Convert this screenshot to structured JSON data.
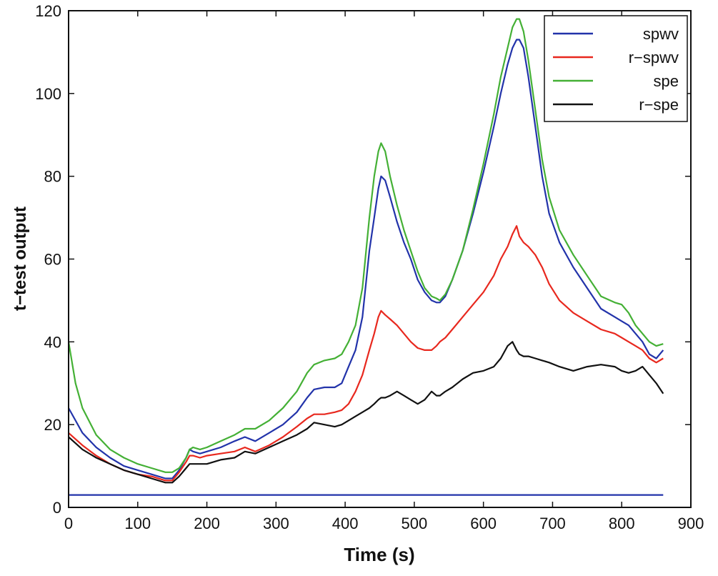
{
  "chart_data": {
    "type": "line",
    "title": "",
    "xlabel": "Time (s)",
    "ylabel": "t−test output",
    "xlim": [
      0,
      900
    ],
    "ylim": [
      0,
      120
    ],
    "xticks": [
      "0",
      "100",
      "200",
      "300",
      "400",
      "500",
      "600",
      "700",
      "800",
      "900"
    ],
    "yticks": [
      "0",
      "20",
      "40",
      "60",
      "80",
      "100",
      "120"
    ],
    "grid": false,
    "legend_position": "top-right",
    "series": [
      {
        "name": "spwv",
        "color": "#2233aa",
        "x": [
          0,
          10,
          20,
          40,
          60,
          80,
          100,
          120,
          140,
          150,
          160,
          170,
          175,
          180,
          190,
          200,
          220,
          240,
          255,
          270,
          290,
          310,
          330,
          345,
          355,
          370,
          385,
          395,
          405,
          415,
          425,
          435,
          442,
          448,
          452,
          458,
          465,
          475,
          485,
          495,
          505,
          515,
          525,
          532,
          537,
          545,
          555,
          570,
          585,
          600,
          615,
          625,
          635,
          642,
          648,
          652,
          658,
          665,
          675,
          685,
          695,
          710,
          730,
          750,
          770,
          790,
          800,
          810,
          820,
          830,
          840,
          850,
          860
        ],
        "y": [
          24,
          21,
          18,
          14.5,
          12,
          10,
          9,
          8,
          7,
          7,
          9,
          12,
          14,
          13.5,
          13,
          13.5,
          14.5,
          16,
          17,
          16,
          18,
          20,
          23,
          26.5,
          28.5,
          29,
          29,
          30,
          34,
          38,
          46,
          62,
          70,
          77,
          80,
          79,
          75,
          69,
          64,
          60,
          55,
          52,
          50,
          49.5,
          49.5,
          51,
          55,
          62,
          71,
          81,
          92,
          100,
          107,
          111,
          113,
          113,
          111,
          104,
          92,
          80,
          71,
          64,
          58,
          53,
          48,
          46,
          45,
          44,
          42,
          40,
          37,
          36,
          38
        ]
      },
      {
        "name": "r−spwv",
        "color": "#e8281e",
        "x": [
          0,
          10,
          20,
          40,
          60,
          80,
          100,
          120,
          140,
          150,
          160,
          170,
          175,
          180,
          190,
          200,
          220,
          240,
          255,
          270,
          290,
          310,
          330,
          345,
          355,
          370,
          385,
          395,
          405,
          415,
          425,
          435,
          442,
          448,
          452,
          458,
          465,
          475,
          485,
          495,
          505,
          515,
          525,
          532,
          537,
          545,
          555,
          570,
          585,
          600,
          615,
          625,
          635,
          642,
          648,
          652,
          658,
          665,
          675,
          685,
          695,
          710,
          730,
          750,
          770,
          790,
          800,
          810,
          820,
          830,
          840,
          850,
          860
        ],
        "y": [
          18,
          16.5,
          15,
          12.5,
          10.5,
          9,
          8,
          7.5,
          6.5,
          6.5,
          8.5,
          11,
          12.5,
          12.5,
          12,
          12.5,
          13,
          13.5,
          14.5,
          13.5,
          15,
          17,
          19.5,
          21.5,
          22.5,
          22.5,
          23,
          23.5,
          25,
          28,
          32,
          38,
          42,
          46,
          47.5,
          46.5,
          45.5,
          44,
          42,
          40,
          38.5,
          38,
          38,
          39,
          40,
          41,
          43,
          46,
          49,
          52,
          56,
          60,
          63,
          66,
          68,
          65.5,
          64,
          63,
          61,
          58,
          54,
          50,
          47,
          45,
          43,
          42,
          41,
          40,
          39,
          38,
          36,
          35,
          36
        ]
      },
      {
        "name": "spe",
        "color": "#44b035",
        "x": [
          0,
          10,
          20,
          40,
          60,
          80,
          100,
          120,
          140,
          150,
          160,
          170,
          175,
          180,
          190,
          200,
          220,
          240,
          255,
          270,
          290,
          310,
          330,
          345,
          355,
          370,
          385,
          395,
          405,
          415,
          425,
          435,
          442,
          448,
          452,
          458,
          465,
          475,
          485,
          495,
          505,
          515,
          525,
          532,
          537,
          545,
          555,
          570,
          585,
          600,
          615,
          625,
          635,
          642,
          648,
          652,
          658,
          665,
          675,
          685,
          695,
          710,
          730,
          750,
          770,
          790,
          800,
          810,
          820,
          830,
          840,
          850,
          860
        ],
        "y": [
          40,
          30,
          24,
          17.5,
          14,
          12,
          10.5,
          9.5,
          8.5,
          8.5,
          9.5,
          12,
          14,
          14.5,
          14,
          14.5,
          16,
          17.5,
          19,
          19,
          21,
          24,
          28,
          32.5,
          34.5,
          35.5,
          36,
          37,
          40,
          44,
          53,
          70,
          80,
          86,
          88,
          86,
          80,
          73,
          67,
          62,
          57,
          53,
          51,
          50.5,
          50,
          51.5,
          55,
          62,
          72,
          83,
          95,
          104,
          111,
          116,
          118,
          118,
          115,
          108,
          96,
          84,
          75,
          67,
          61,
          56,
          51,
          49.5,
          49,
          47,
          44,
          42,
          40,
          39,
          39.5
        ]
      },
      {
        "name": "r−spe",
        "color": "#111111",
        "x": [
          0,
          10,
          20,
          40,
          60,
          80,
          100,
          120,
          140,
          150,
          160,
          170,
          175,
          180,
          190,
          200,
          220,
          240,
          255,
          270,
          290,
          310,
          330,
          345,
          355,
          370,
          385,
          395,
          405,
          415,
          425,
          435,
          442,
          448,
          452,
          458,
          465,
          475,
          485,
          495,
          505,
          515,
          525,
          532,
          537,
          545,
          555,
          570,
          585,
          600,
          615,
          625,
          635,
          642,
          648,
          652,
          658,
          665,
          675,
          685,
          695,
          710,
          730,
          750,
          770,
          790,
          800,
          810,
          820,
          830,
          840,
          850,
          860
        ],
        "y": [
          17,
          15.5,
          14,
          12,
          10.5,
          9,
          8,
          7,
          6,
          6,
          7.5,
          9.5,
          10.5,
          10.5,
          10.5,
          10.5,
          11.5,
          12,
          13.5,
          13,
          14.5,
          16,
          17.5,
          19,
          20.5,
          20,
          19.5,
          20,
          21,
          22,
          23,
          24,
          25,
          26,
          26.5,
          26.5,
          27,
          28,
          27,
          26,
          25,
          26,
          28,
          27,
          27,
          28,
          29,
          31,
          32.5,
          33,
          34,
          36,
          39,
          40,
          38,
          37,
          36.5,
          36.5,
          36,
          35.5,
          35,
          34,
          33,
          34,
          34.5,
          34,
          33,
          32.5,
          33,
          34,
          32,
          30,
          27.5
        ]
      },
      {
        "name": "",
        "color": "#2233aa",
        "x": [
          0,
          860
        ],
        "y": [
          3,
          3
        ]
      }
    ]
  }
}
